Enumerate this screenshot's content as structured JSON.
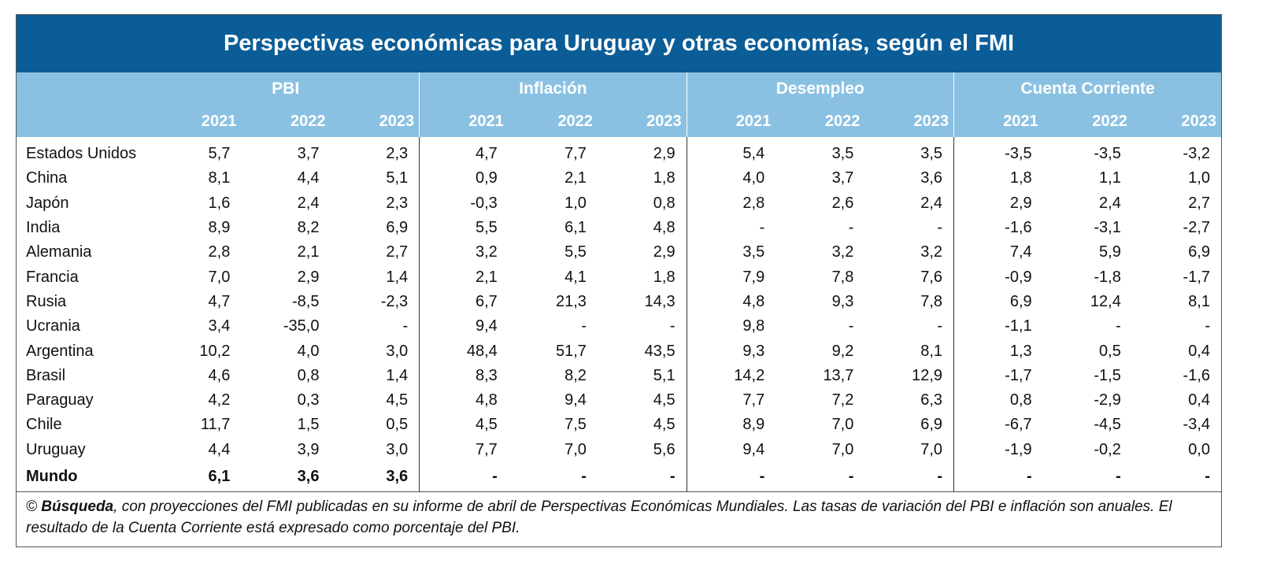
{
  "title": "Perspectivas económicas para Uruguay y otras economías, según el FMI",
  "groups": [
    "PBI",
    "Inflación",
    "Desempleo",
    "Cuenta Corriente"
  ],
  "years": [
    "2021",
    "2022",
    "2023"
  ],
  "rows": [
    {
      "name": "Estados Unidos",
      "values": [
        "5,7",
        "3,7",
        "2,3",
        "4,7",
        "7,7",
        "2,9",
        "5,4",
        "3,5",
        "3,5",
        "-3,5",
        "-3,5",
        "-3,2"
      ]
    },
    {
      "name": "China",
      "values": [
        "8,1",
        "4,4",
        "5,1",
        "0,9",
        "2,1",
        "1,8",
        "4,0",
        "3,7",
        "3,6",
        "1,8",
        "1,1",
        "1,0"
      ]
    },
    {
      "name": "Japón",
      "values": [
        "1,6",
        "2,4",
        "2,3",
        "-0,3",
        "1,0",
        "0,8",
        "2,8",
        "2,6",
        "2,4",
        "2,9",
        "2,4",
        "2,7"
      ]
    },
    {
      "name": "India",
      "values": [
        "8,9",
        "8,2",
        "6,9",
        "5,5",
        "6,1",
        "4,8",
        "-",
        "-",
        "-",
        "-1,6",
        "-3,1",
        "-2,7"
      ]
    },
    {
      "name": "Alemania",
      "values": [
        "2,8",
        "2,1",
        "2,7",
        "3,2",
        "5,5",
        "2,9",
        "3,5",
        "3,2",
        "3,2",
        "7,4",
        "5,9",
        "6,9"
      ]
    },
    {
      "name": "Francia",
      "values": [
        "7,0",
        "2,9",
        "1,4",
        "2,1",
        "4,1",
        "1,8",
        "7,9",
        "7,8",
        "7,6",
        "-0,9",
        "-1,8",
        "-1,7"
      ]
    },
    {
      "name": "Rusia",
      "values": [
        "4,7",
        "-8,5",
        "-2,3",
        "6,7",
        "21,3",
        "14,3",
        "4,8",
        "9,3",
        "7,8",
        "6,9",
        "12,4",
        "8,1"
      ]
    },
    {
      "name": "Ucrania",
      "values": [
        "3,4",
        "-35,0",
        "-",
        "9,4",
        "-",
        "-",
        "9,8",
        "-",
        "-",
        "-1,1",
        "-",
        "-"
      ]
    },
    {
      "name": "Argentina",
      "values": [
        "10,2",
        "4,0",
        "3,0",
        "48,4",
        "51,7",
        "43,5",
        "9,3",
        "9,2",
        "8,1",
        "1,3",
        "0,5",
        "0,4"
      ]
    },
    {
      "name": "Brasil",
      "values": [
        "4,6",
        "0,8",
        "1,4",
        "8,3",
        "8,2",
        "5,1",
        "14,2",
        "13,7",
        "12,9",
        "-1,7",
        "-1,5",
        "-1,6"
      ]
    },
    {
      "name": "Paraguay",
      "values": [
        "4,2",
        "0,3",
        "4,5",
        "4,8",
        "9,4",
        "4,5",
        "7,7",
        "7,2",
        "6,3",
        "0,8",
        "-2,9",
        "0,4"
      ]
    },
    {
      "name": "Chile",
      "values": [
        "11,7",
        "1,5",
        "0,5",
        "4,5",
        "7,5",
        "4,5",
        "8,9",
        "7,0",
        "6,9",
        "-6,7",
        "-4,5",
        "-3,4"
      ]
    },
    {
      "name": "Uruguay",
      "values": [
        "4,4",
        "3,9",
        "3,0",
        "7,7",
        "7,0",
        "5,6",
        "9,4",
        "7,0",
        "7,0",
        "-1,9",
        "-0,2",
        "0,0"
      ]
    },
    {
      "name": "Mundo",
      "values": [
        "6,1",
        "3,6",
        "3,6",
        "-",
        "-",
        "-",
        "-",
        "-",
        "-",
        "-",
        "-",
        "-"
      ],
      "bold": true
    }
  ],
  "note": {
    "prefix": "© ",
    "source": "Búsqueda",
    "text": ", con proyecciones del FMI publicadas en su informe de abril de Perspectivas Económicas Mundiales. Las tasas de variación del PBI e inflación son anuales. El resultado de la Cuenta Corriente está expresado como porcentaje del PBI."
  },
  "colors": {
    "title_bg": "#0b5d97",
    "header_bg": "#8ac1e2",
    "header_text": "#ffffff"
  },
  "chart_data": {
    "type": "table",
    "title": "Perspectivas económicas para Uruguay y otras economías, según el FMI",
    "columns": [
      "PBI 2021",
      "PBI 2022",
      "PBI 2023",
      "Inflación 2021",
      "Inflación 2022",
      "Inflación 2023",
      "Desempleo 2021",
      "Desempleo 2022",
      "Desempleo 2023",
      "Cuenta Corriente 2021",
      "Cuenta Corriente 2022",
      "Cuenta Corriente 2023"
    ],
    "row_labels": [
      "Estados Unidos",
      "China",
      "Japón",
      "India",
      "Alemania",
      "Francia",
      "Rusia",
      "Ucrania",
      "Argentina",
      "Brasil",
      "Paraguay",
      "Chile",
      "Uruguay",
      "Mundo"
    ]
  }
}
